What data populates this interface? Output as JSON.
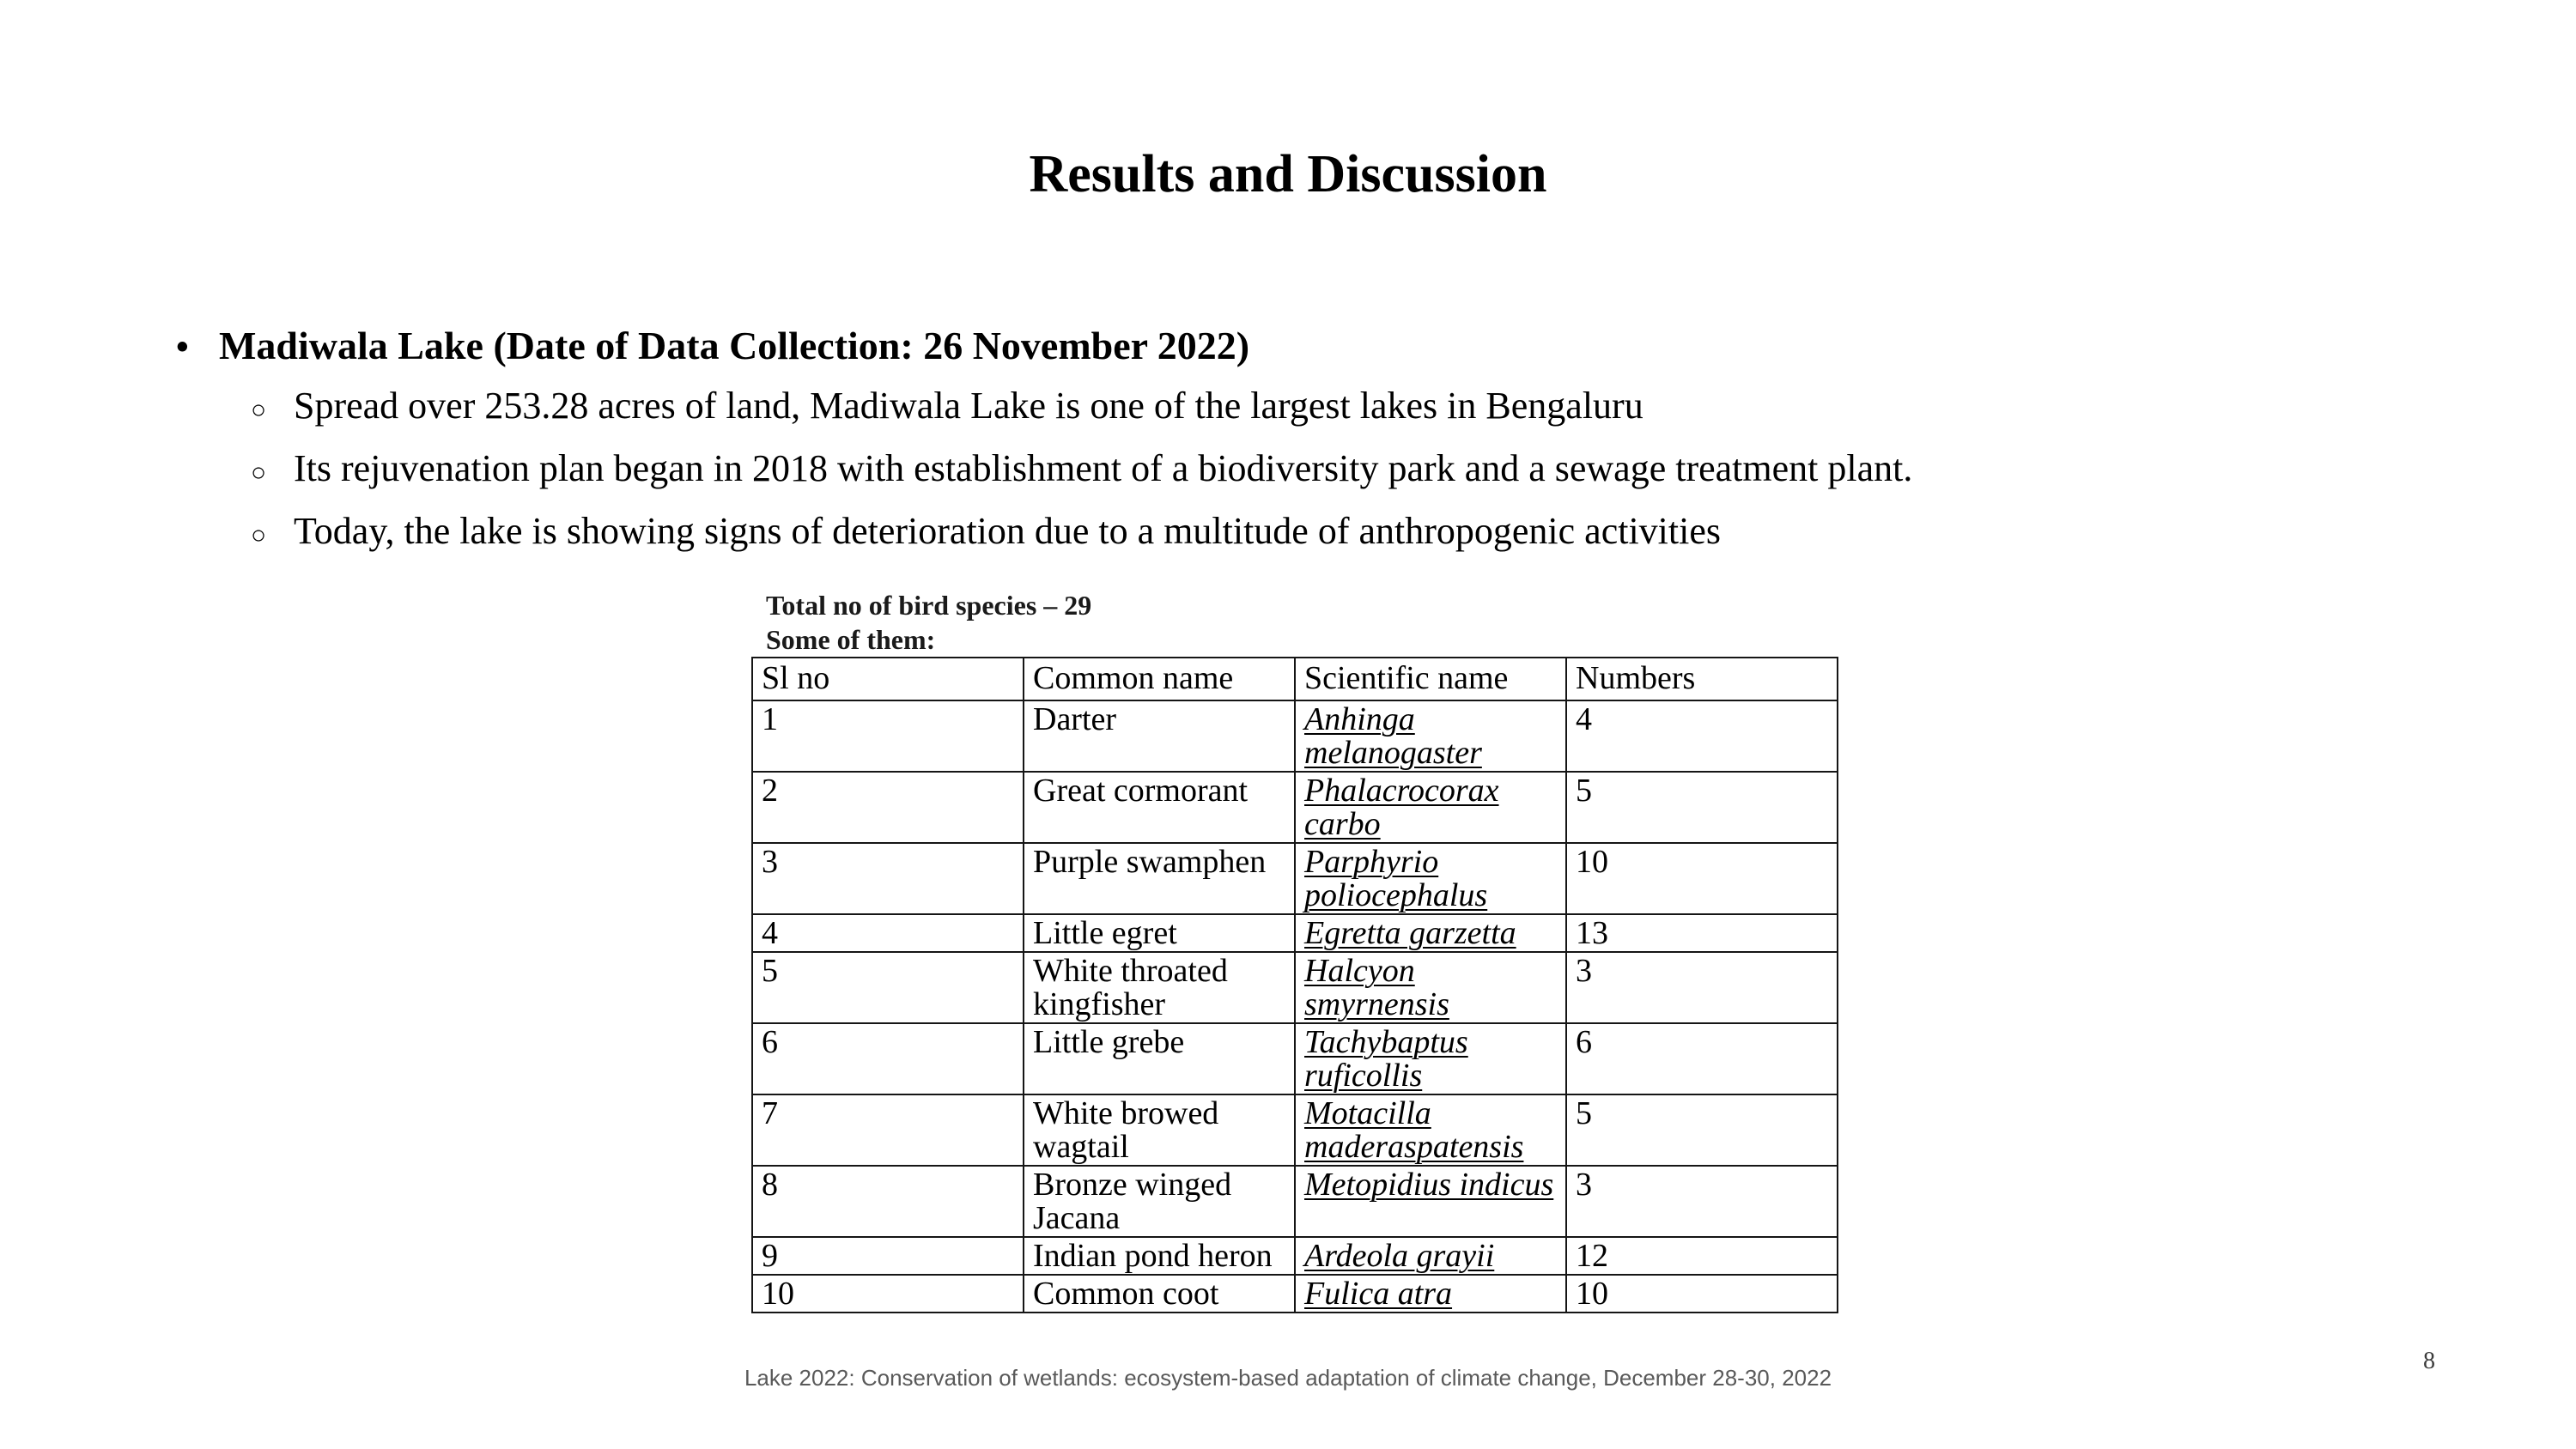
{
  "slide": {
    "title": "Results and Discussion",
    "markers": {
      "bullet_char": "•",
      "sub_bullet_char": "○"
    },
    "bullets": {
      "main": "Madiwala Lake (Date of Data Collection: 26 November 2022)",
      "sub": [
        "Spread over 253.28 acres of land, Madiwala Lake is one of the largest lakes in Bengaluru",
        "Its rejuvenation plan began in 2018 with establishment of a biodiversity park and a sewage treatment plant.",
        "Today, the lake is showing signs of deterioration due to a multitude of anthropogenic activities"
      ]
    },
    "bird_table": {
      "intro_line1": "Total no of bird species – 29",
      "intro_line2": "Some of them:",
      "headers": [
        "Sl no",
        "Common name",
        "Scientific name",
        "Numbers"
      ],
      "rows": [
        {
          "sl_no": "1",
          "common_name": "Darter",
          "scientific_name": "Anhinga\nmelanogaster",
          "numbers": "4"
        },
        {
          "sl_no": "2",
          "common_name": "Great cormorant",
          "scientific_name": "Phalacrocorax\ncarbo",
          "numbers": "5"
        },
        {
          "sl_no": "3",
          "common_name": "Purple swamphen",
          "scientific_name": "Parphyrio\npoliocephalus",
          "numbers": "10"
        },
        {
          "sl_no": "4",
          "common_name": "Little egret",
          "scientific_name": "Egretta garzetta",
          "numbers": "13"
        },
        {
          "sl_no": "5",
          "common_name": "White throated\nkingfisher",
          "scientific_name": "Halcyon\nsmyrnensis",
          "numbers": "3"
        },
        {
          "sl_no": "6",
          "common_name": "Little grebe",
          "scientific_name": "Tachybaptus\nruficollis",
          "numbers": "6"
        },
        {
          "sl_no": "7",
          "common_name": "White browed\nwagtail",
          "scientific_name": "Motacilla\nmaderaspatensis",
          "numbers": "5"
        },
        {
          "sl_no": "8",
          "common_name": "Bronze winged\nJacana",
          "scientific_name": "Metopidius indicus",
          "numbers": "3"
        },
        {
          "sl_no": "9",
          "common_name": "Indian pond heron",
          "scientific_name": "Ardeola grayii",
          "numbers": "12"
        },
        {
          "sl_no": "10",
          "common_name": "Common coot",
          "scientific_name": "Fulica atra",
          "numbers": "10"
        }
      ]
    },
    "footer": "Lake 2022: Conservation of wetlands: ecosystem-based adaptation of climate change, December 28-30, 2022",
    "page_number": "8"
  }
}
